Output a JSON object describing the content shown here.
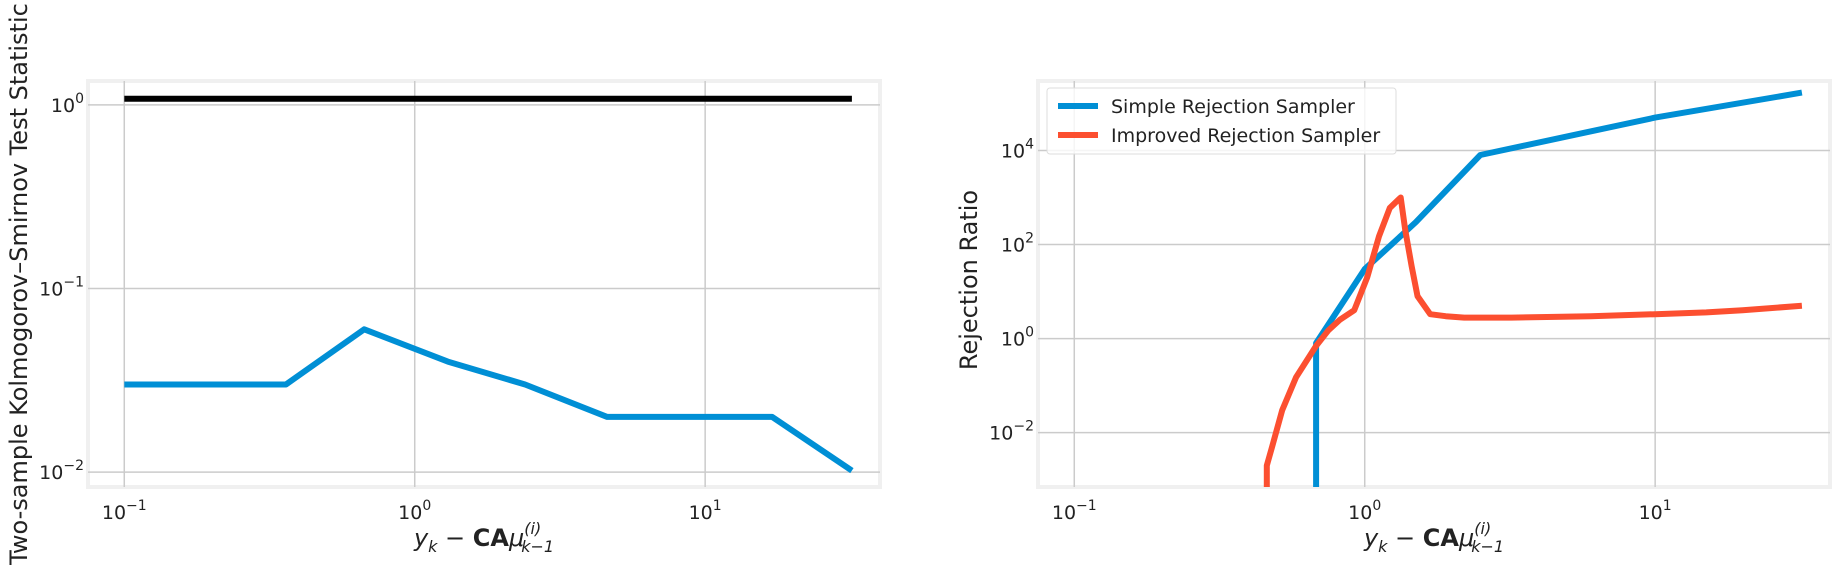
{
  "colors": {
    "blue": "#008fd5",
    "orange": "#fc4f30",
    "black": "#000000",
    "grid": "#cbcbcb",
    "frame": "#f0f0f0"
  },
  "chart_data": [
    {
      "type": "line",
      "xscale": "log",
      "yscale": "log",
      "grid": true,
      "xlim": [
        0.075,
        40
      ],
      "ylim": [
        0.0083,
        1.35
      ],
      "xlabel": "y_k − CAμ_{k−1}^{(i)}",
      "ylabel": "Two-sample Kolmogorov–Smirnov Test Statistic",
      "x_ticks": [
        {
          "value": 0.1,
          "base": "10",
          "exp": "−1"
        },
        {
          "value": 1,
          "base": "10",
          "exp": "0"
        },
        {
          "value": 10,
          "base": "10",
          "exp": "1"
        }
      ],
      "y_ticks": [
        {
          "value": 0.01,
          "base": "10",
          "exp": "−2"
        },
        {
          "value": 0.1,
          "base": "10",
          "exp": "−1"
        },
        {
          "value": 1,
          "base": "10",
          "exp": "0"
        }
      ],
      "series": [
        {
          "color": "blue",
          "x": [
            0.1,
            0.36,
            0.67,
            1.3,
            2.4,
            4.6,
            17,
            32
          ],
          "y": [
            0.03,
            0.03,
            0.06,
            0.04,
            0.03,
            0.02,
            0.02,
            0.0102
          ]
        },
        {
          "color": "black",
          "x": [
            0.1,
            32
          ],
          "y": [
            1.08,
            1.08
          ]
        }
      ]
    },
    {
      "type": "line",
      "xscale": "log",
      "yscale": "log",
      "grid": true,
      "legend": "top-left",
      "xlim": [
        0.075,
        40
      ],
      "ylim": [
        0.0007,
        300000
      ],
      "xlabel": "y_k − CAμ_{k−1}^{(i)}",
      "ylabel": "Rejection Ratio",
      "x_ticks": [
        {
          "value": 0.1,
          "base": "10",
          "exp": "−1"
        },
        {
          "value": 1,
          "base": "10",
          "exp": "0"
        },
        {
          "value": 10,
          "base": "10",
          "exp": "1"
        }
      ],
      "y_ticks": [
        {
          "value": 0.01,
          "base": "10",
          "exp": "−2"
        },
        {
          "value": 1,
          "base": "10",
          "exp": "0"
        },
        {
          "value": 100,
          "base": "10",
          "exp": "2"
        },
        {
          "value": 10000,
          "base": "10",
          "exp": "4"
        }
      ],
      "series": [
        {
          "name": "Simple Rejection Sampler",
          "color": "blue",
          "x": [
            0.68,
            0.68,
            1.0,
            1.5,
            2.5,
            5,
            10,
            32
          ],
          "y": [
            0.0007,
            0.8,
            30,
            300,
            8000,
            20000,
            50000,
            170000
          ]
        },
        {
          "name": "Improved Rejection Sampler",
          "color": "orange",
          "x": [
            0.46,
            0.46,
            0.48,
            0.52,
            0.58,
            0.68,
            0.75,
            0.82,
            0.92,
            1.02,
            1.12,
            1.22,
            1.33,
            1.38,
            1.45,
            1.52,
            1.68,
            1.9,
            2.2,
            2.6,
            3.2,
            4.5,
            6,
            10,
            15,
            20,
            32
          ],
          "y": [
            0.0007,
            0.002,
            0.005,
            0.03,
            0.15,
            0.7,
            1.5,
            2.5,
            4,
            20,
            150,
            600,
            1000,
            200,
            35,
            8,
            3.3,
            3.0,
            2.8,
            2.8,
            2.8,
            2.9,
            3.0,
            3.3,
            3.6,
            4.0,
            5.0
          ]
        }
      ]
    }
  ]
}
